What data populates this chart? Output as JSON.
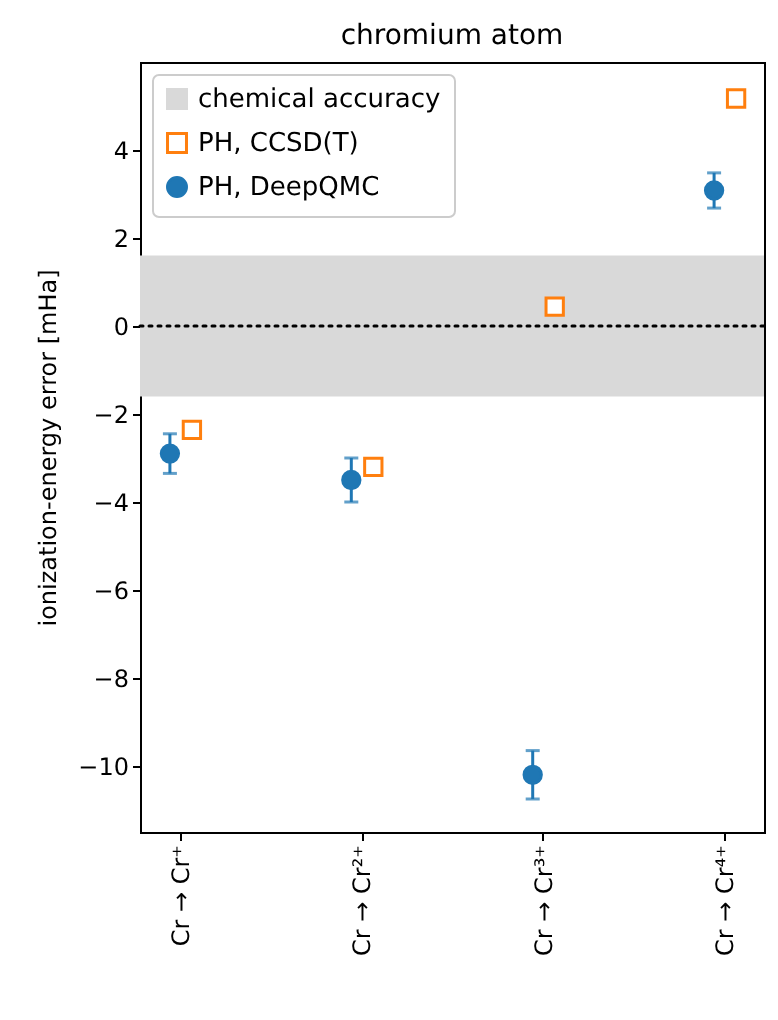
{
  "chart_data": {
    "type": "scatter",
    "title": "chromium atom",
    "ylabel": "ionization-energy error [mHa]",
    "categories": [
      "Cr → Cr⁺",
      "Cr → Cr²⁺",
      "Cr → Cr³⁺",
      "Cr → Cr⁴⁺"
    ],
    "series": [
      {
        "name": "PH, CCSD(T)",
        "color": "#ff7f0e",
        "marker": "square",
        "values": [
          -2.36,
          -3.2,
          0.44,
          5.17
        ]
      },
      {
        "name": "PH, DeepQMC",
        "color": "#1f77b4",
        "marker": "circle",
        "values": [
          -2.9,
          -3.5,
          -10.2,
          3.08
        ],
        "errors": [
          0.45,
          0.5,
          0.55,
          0.4
        ]
      }
    ],
    "ylim": [
      -11.5,
      6
    ],
    "yticks": [
      -10,
      -8,
      -6,
      -4,
      -2,
      0,
      2,
      4
    ],
    "bands": [
      {
        "axis": "y",
        "from": -1.6,
        "to": 1.6,
        "label": "chemical accuracy",
        "color": "#d9d9d9"
      }
    ],
    "ref_lines": [
      {
        "axis": "y",
        "value": 0,
        "color": "#000000",
        "line_style": "dotted"
      }
    ],
    "grid": false,
    "legend": "top left"
  }
}
